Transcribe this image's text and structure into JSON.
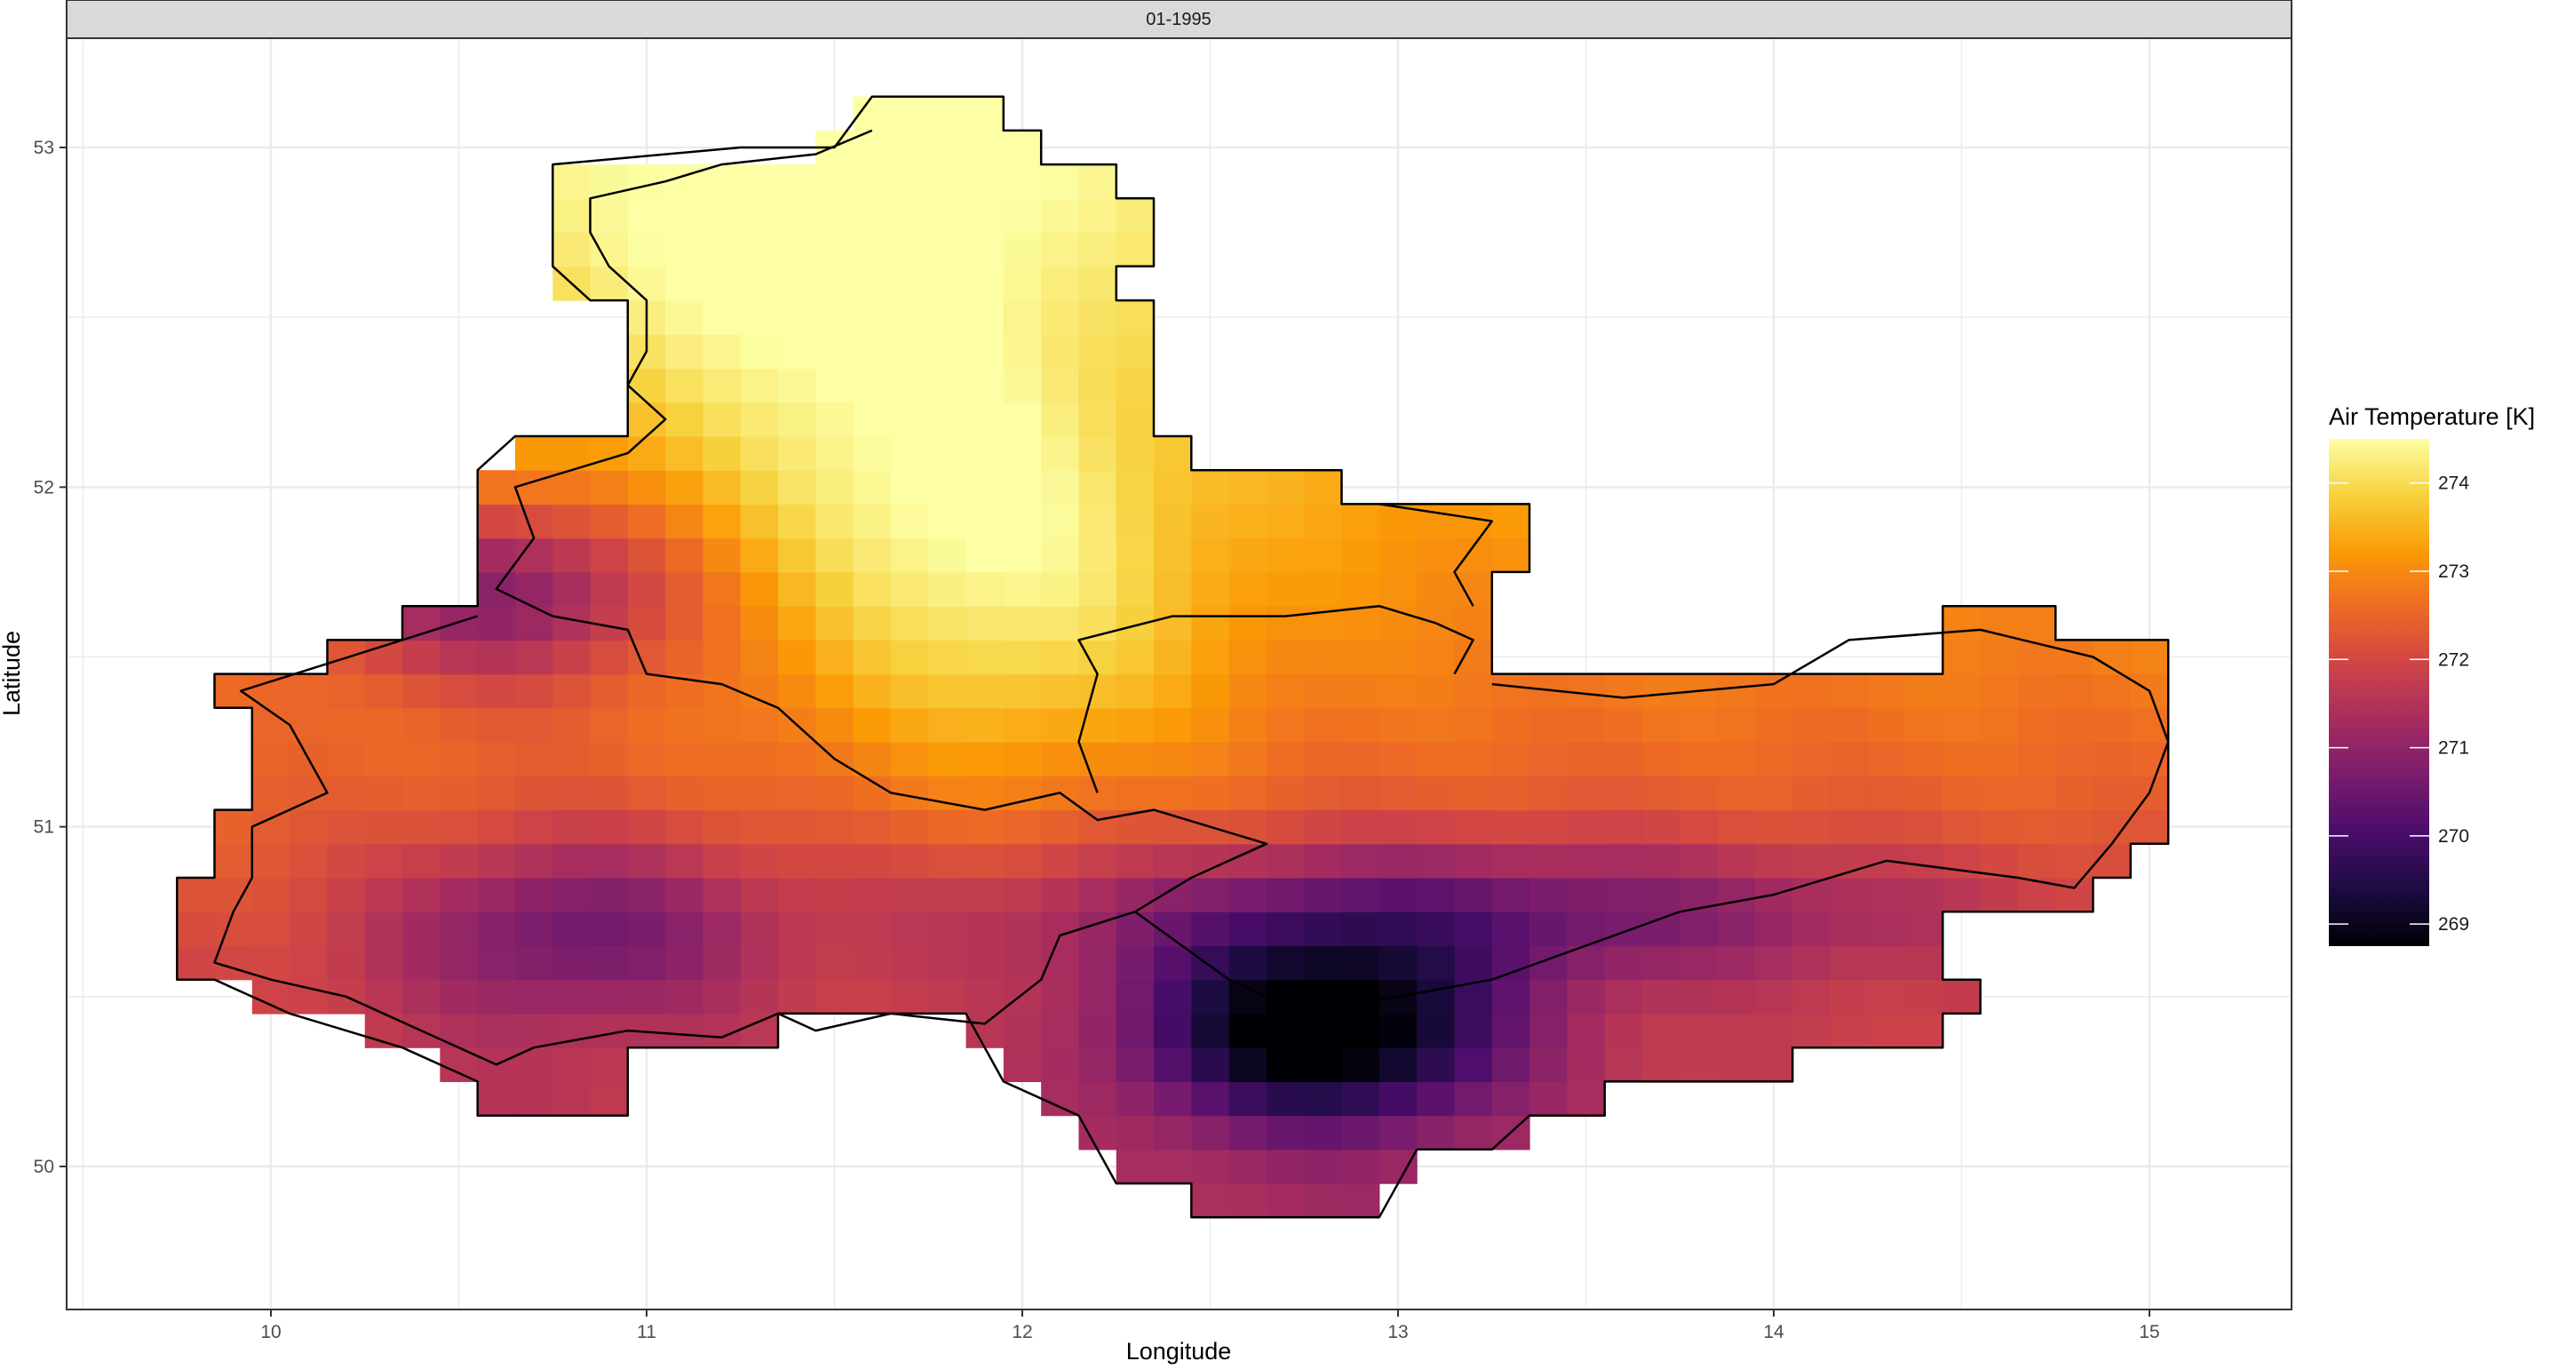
{
  "chart_data": {
    "type": "heatmap",
    "panel_title": "01-1995",
    "xlabel": "Longitude",
    "ylabel": "Latitude",
    "xlim": [
      9.5,
      15.4
    ],
    "ylim": [
      49.6,
      53.3
    ],
    "x_ticks": [
      10,
      11,
      12,
      13,
      14,
      15
    ],
    "y_ticks": [
      50,
      51,
      52,
      53
    ],
    "grid": true,
    "legend": {
      "title": "Air Temperature [K]",
      "placement": "right",
      "ticks": [
        269,
        270,
        271,
        272,
        273,
        274
      ],
      "range": [
        268.75,
        274.5
      ]
    },
    "colormap": [
      "#000004",
      "#1b0c41",
      "#4a0c6b",
      "#781c6d",
      "#a52c60",
      "#cf4446",
      "#ed6925",
      "#fb9b06",
      "#f7d13d",
      "#fcffa4"
    ],
    "grid_cell": {
      "dlon": 0.1,
      "dlat": 0.1
    },
    "warm_centers": [
      {
        "lon": 11.5,
        "lat": 52.7,
        "value": 274.4
      },
      {
        "lon": 11.8,
        "lat": 52.0,
        "value": 274.3
      },
      {
        "lon": 12.0,
        "lat": 51.5,
        "value": 274.1
      }
    ],
    "cold_centers": [
      {
        "lon": 12.8,
        "lat": 50.4,
        "value": 268.8
      },
      {
        "lon": 10.6,
        "lat": 51.7,
        "value": 270.2
      },
      {
        "lon": 10.8,
        "lat": 50.7,
        "value": 270.8
      }
    ],
    "domain_outline": [
      [
        11.6,
        53.15
      ],
      [
        11.5,
        53.0
      ],
      [
        11.25,
        53.0
      ],
      [
        10.75,
        52.95
      ],
      [
        10.75,
        52.65
      ],
      [
        10.85,
        52.55
      ],
      [
        10.95,
        52.55
      ],
      [
        10.95,
        52.15
      ],
      [
        10.65,
        52.15
      ],
      [
        10.55,
        52.05
      ],
      [
        10.55,
        51.65
      ],
      [
        10.35,
        51.65
      ],
      [
        10.35,
        51.55
      ],
      [
        10.15,
        51.55
      ],
      [
        10.15,
        51.45
      ],
      [
        9.85,
        51.45
      ],
      [
        9.85,
        51.35
      ],
      [
        9.95,
        51.35
      ],
      [
        9.95,
        51.05
      ],
      [
        9.85,
        51.05
      ],
      [
        9.85,
        50.85
      ],
      [
        9.75,
        50.85
      ],
      [
        9.75,
        50.55
      ],
      [
        9.85,
        50.55
      ],
      [
        10.05,
        50.45
      ],
      [
        10.35,
        50.35
      ],
      [
        10.55,
        50.25
      ],
      [
        10.55,
        50.15
      ],
      [
        10.95,
        50.15
      ],
      [
        10.95,
        50.35
      ],
      [
        11.35,
        50.35
      ],
      [
        11.35,
        50.45
      ],
      [
        11.85,
        50.45
      ],
      [
        11.95,
        50.25
      ],
      [
        12.15,
        50.15
      ],
      [
        12.25,
        49.95
      ],
      [
        12.45,
        49.95
      ],
      [
        12.45,
        49.85
      ],
      [
        12.95,
        49.85
      ],
      [
        13.05,
        50.05
      ],
      [
        13.25,
        50.05
      ],
      [
        13.35,
        50.15
      ],
      [
        13.55,
        50.15
      ],
      [
        13.55,
        50.25
      ],
      [
        14.05,
        50.25
      ],
      [
        14.05,
        50.35
      ],
      [
        14.45,
        50.35
      ],
      [
        14.45,
        50.45
      ],
      [
        14.55,
        50.45
      ],
      [
        14.55,
        50.55
      ],
      [
        14.45,
        50.55
      ],
      [
        14.45,
        50.75
      ],
      [
        14.85,
        50.75
      ],
      [
        14.85,
        50.85
      ],
      [
        14.95,
        50.85
      ],
      [
        14.95,
        50.95
      ],
      [
        15.05,
        50.95
      ],
      [
        15.05,
        51.55
      ],
      [
        14.75,
        51.55
      ],
      [
        14.75,
        51.65
      ],
      [
        14.45,
        51.65
      ],
      [
        14.45,
        51.45
      ],
      [
        14.05,
        51.45
      ],
      [
        14.05,
        51.45
      ],
      [
        13.25,
        51.45
      ],
      [
        13.25,
        51.75
      ],
      [
        13.35,
        51.75
      ],
      [
        13.35,
        51.95
      ],
      [
        12.85,
        51.95
      ],
      [
        12.85,
        52.05
      ],
      [
        12.45,
        52.05
      ],
      [
        12.45,
        52.15
      ],
      [
        12.35,
        52.15
      ],
      [
        12.35,
        52.55
      ],
      [
        12.25,
        52.55
      ],
      [
        12.25,
        52.65
      ],
      [
        12.35,
        52.65
      ],
      [
        12.35,
        52.85
      ],
      [
        12.25,
        52.85
      ],
      [
        12.25,
        52.95
      ],
      [
        12.05,
        52.95
      ],
      [
        12.05,
        53.05
      ],
      [
        11.95,
        53.05
      ],
      [
        11.95,
        53.15
      ],
      [
        11.6,
        53.15
      ]
    ],
    "state_borders": [
      {
        "name": "",
        "points": [
          [
            11.6,
            53.05
          ],
          [
            11.45,
            52.98
          ],
          [
            11.2,
            52.95
          ],
          [
            11.05,
            52.9
          ],
          [
            10.85,
            52.85
          ],
          [
            10.85,
            52.75
          ],
          [
            10.9,
            52.65
          ],
          [
            11.0,
            52.55
          ],
          [
            11.0,
            52.4
          ],
          [
            10.95,
            52.3
          ],
          [
            11.05,
            52.2
          ],
          [
            10.95,
            52.1
          ],
          [
            10.8,
            52.05
          ],
          [
            10.65,
            52.0
          ],
          [
            10.7,
            51.85
          ],
          [
            10.6,
            51.7
          ],
          [
            10.75,
            51.62
          ],
          [
            10.95,
            51.58
          ],
          [
            11.0,
            51.45
          ],
          [
            11.2,
            51.42
          ],
          [
            11.35,
            51.35
          ],
          [
            11.5,
            51.2
          ],
          [
            11.65,
            51.1
          ],
          [
            11.9,
            51.05
          ],
          [
            12.1,
            51.1
          ],
          [
            12.2,
            51.02
          ],
          [
            12.35,
            51.05
          ],
          [
            12.5,
            51.0
          ],
          [
            12.65,
            50.95
          ],
          [
            12.55,
            50.9
          ]
        ]
      },
      {
        "name": "",
        "points": [
          [
            12.2,
            51.1
          ],
          [
            12.15,
            51.25
          ],
          [
            12.2,
            51.45
          ],
          [
            12.15,
            51.55
          ],
          [
            12.4,
            51.62
          ],
          [
            12.7,
            51.62
          ],
          [
            12.95,
            51.65
          ],
          [
            13.1,
            51.6
          ],
          [
            13.2,
            51.55
          ],
          [
            13.15,
            51.45
          ]
        ]
      },
      {
        "name": "",
        "points": [
          [
            12.65,
            50.95
          ],
          [
            12.45,
            50.85
          ],
          [
            12.3,
            50.75
          ],
          [
            12.1,
            50.68
          ],
          [
            12.05,
            50.55
          ],
          [
            11.9,
            50.42
          ],
          [
            11.65,
            50.45
          ],
          [
            11.45,
            50.4
          ],
          [
            11.35,
            50.45
          ],
          [
            11.2,
            50.38
          ],
          [
            10.95,
            50.4
          ],
          [
            10.7,
            50.35
          ],
          [
            10.6,
            50.3
          ],
          [
            10.4,
            50.4
          ],
          [
            10.2,
            50.5
          ],
          [
            10.0,
            50.55
          ],
          [
            9.85,
            50.6
          ],
          [
            9.9,
            50.75
          ],
          [
            9.95,
            50.85
          ],
          [
            9.95,
            51.0
          ],
          [
            10.15,
            51.1
          ],
          [
            10.05,
            51.3
          ],
          [
            9.92,
            51.4
          ],
          [
            10.15,
            51.48
          ],
          [
            10.35,
            51.55
          ],
          [
            10.55,
            51.62
          ]
        ]
      },
      {
        "name": "",
        "points": [
          [
            12.3,
            50.75
          ],
          [
            12.55,
            50.55
          ],
          [
            12.75,
            50.45
          ],
          [
            13.0,
            50.5
          ],
          [
            13.25,
            50.55
          ],
          [
            13.5,
            50.65
          ],
          [
            13.75,
            50.75
          ],
          [
            14.0,
            50.8
          ],
          [
            14.3,
            50.9
          ],
          [
            14.65,
            50.85
          ],
          [
            14.8,
            50.82
          ],
          [
            14.9,
            50.95
          ],
          [
            15.0,
            51.1
          ],
          [
            15.05,
            51.25
          ],
          [
            15.0,
            51.4
          ],
          [
            14.85,
            51.5
          ],
          [
            14.55,
            51.58
          ],
          [
            14.2,
            51.55
          ],
          [
            14.0,
            51.42
          ],
          [
            13.6,
            51.38
          ],
          [
            13.25,
            51.42
          ]
        ]
      },
      {
        "name": "",
        "points": [
          [
            12.95,
            51.95
          ],
          [
            13.25,
            51.9
          ],
          [
            13.15,
            51.75
          ],
          [
            13.2,
            51.65
          ]
        ]
      }
    ]
  }
}
